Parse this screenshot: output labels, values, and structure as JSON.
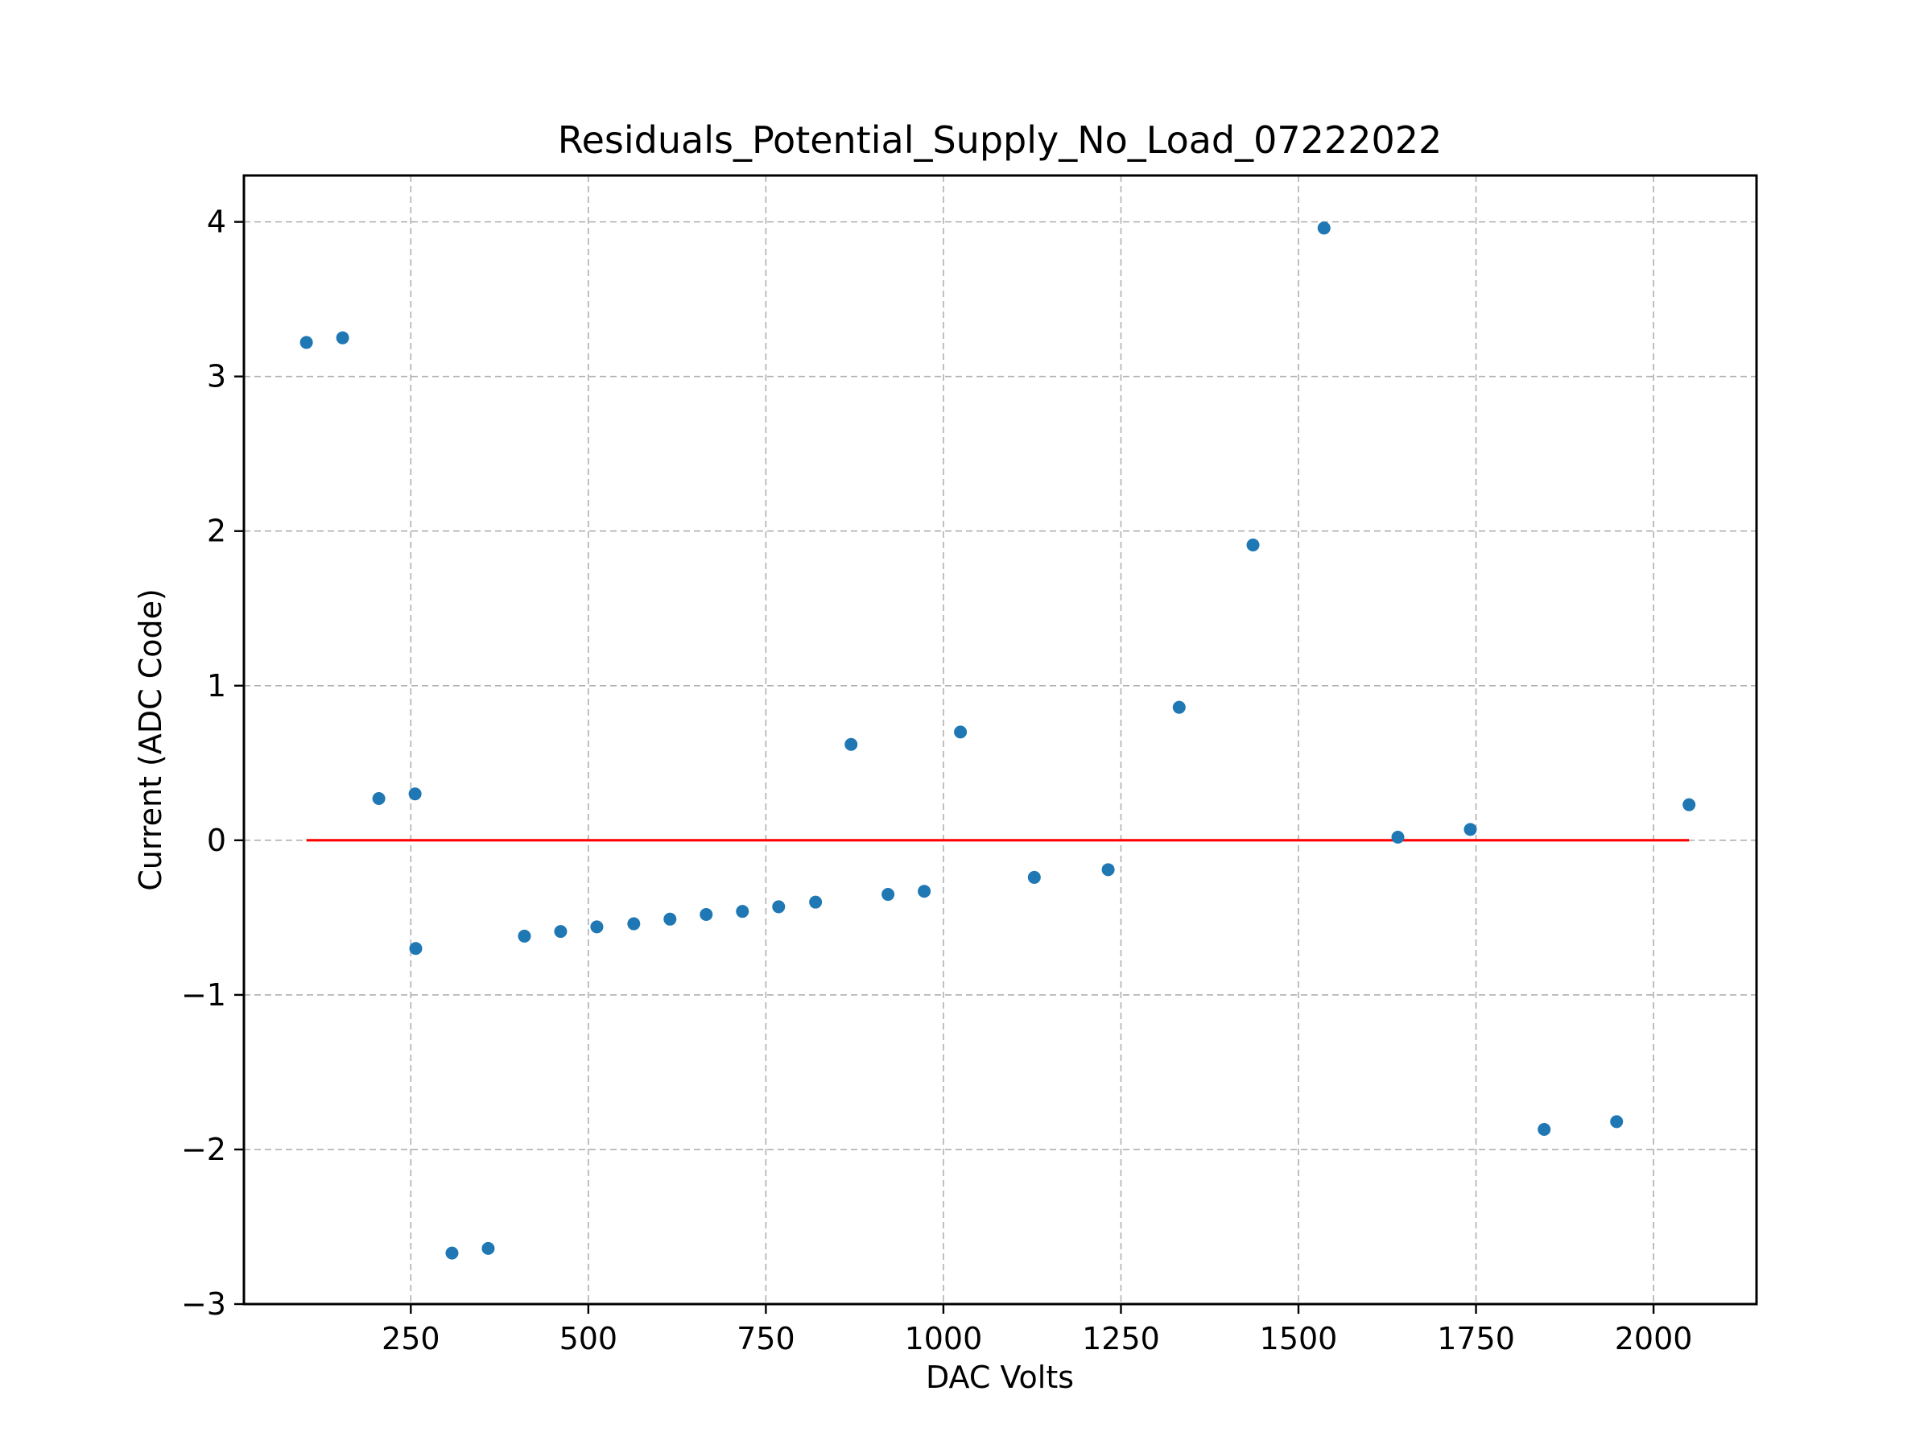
{
  "chart_data": {
    "type": "scatter",
    "title": "Residuals_Potential_Supply_No_Load_07222022",
    "xlabel": "DAC Volts",
    "ylabel": "Current (ADC Code)",
    "xlim": [
      15,
      2145
    ],
    "ylim": [
      -3,
      4.3
    ],
    "x_ticks": [
      250,
      500,
      750,
      1000,
      1250,
      1500,
      1750,
      2000
    ],
    "x_tick_labels": [
      "250",
      "500",
      "750",
      "1000",
      "1250",
      "1500",
      "1750",
      "2000"
    ],
    "y_ticks": [
      -3,
      -2,
      -1,
      0,
      1,
      2,
      3,
      4
    ],
    "y_tick_labels": [
      "−3",
      "−2",
      "−1",
      "0",
      "1",
      "2",
      "3",
      "4"
    ],
    "grid": true,
    "grid_style": "dashed",
    "point_color": "#1f77b4",
    "line_color": "#ff0000",
    "reference_line": {
      "y": 0,
      "x_start": 103,
      "x_end": 2050
    },
    "series": [
      {
        "x": [
          103,
          154,
          205,
          256,
          257,
          308,
          359,
          410,
          461,
          512,
          564,
          615,
          666,
          717,
          768,
          820,
          870,
          922,
          973,
          1024,
          1128,
          1232,
          1332,
          1436,
          1536,
          1640,
          1742,
          1846,
          1948,
          2050
        ],
        "y": [
          3.22,
          3.25,
          0.27,
          0.3,
          -0.7,
          -2.67,
          -2.64,
          -0.62,
          -0.59,
          -0.56,
          -0.54,
          -0.51,
          -0.48,
          -0.46,
          -0.43,
          -0.4,
          0.62,
          -0.35,
          -0.33,
          0.7,
          -0.24,
          -0.19,
          0.86,
          1.91,
          3.96,
          0.02,
          0.07,
          -1.87,
          -1.82,
          0.23
        ]
      }
    ]
  }
}
